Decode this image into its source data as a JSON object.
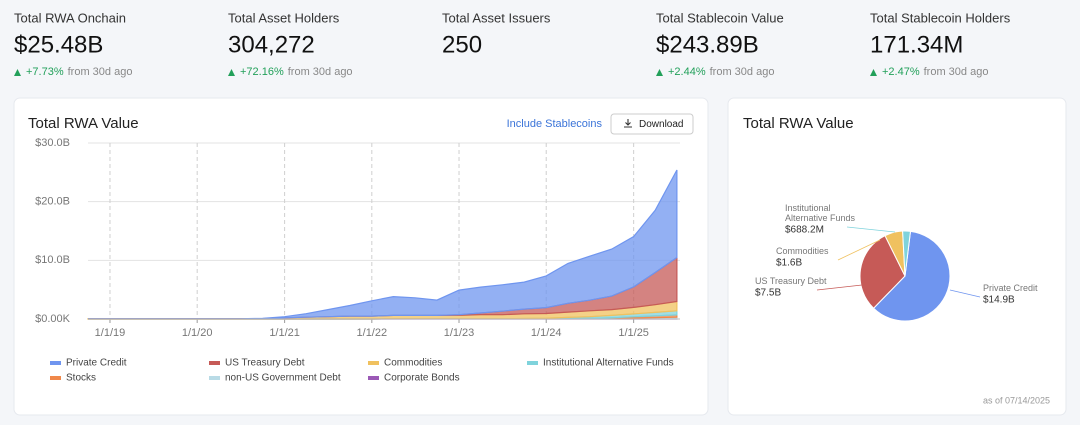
{
  "stats": [
    {
      "label": "Total RWA Onchain",
      "value": "$25.48B",
      "change": "+7.73%",
      "period": "from 30d ago"
    },
    {
      "label": "Total Asset Holders",
      "value": "304,272",
      "change": "+72.16%",
      "period": "from 30d ago"
    },
    {
      "label": "Total Asset Issuers",
      "value": "250"
    },
    {
      "label": "Total Stablecoin Value",
      "value": "$243.89B",
      "change": "+2.44%",
      "period": "from 30d ago"
    },
    {
      "label": "Total Stablecoin Holders",
      "value": "171.34M",
      "change": "+2.47%",
      "period": "from 30d ago"
    }
  ],
  "controls": {
    "toggle": "Include Stablecoins",
    "download": "Download"
  },
  "chart_data": [
    {
      "type": "stacked_area",
      "title": "Total RWA Value",
      "x": [
        "10/1/18",
        "1/1/19",
        "4/1/19",
        "7/1/19",
        "10/1/19",
        "1/1/20",
        "4/1/20",
        "7/1/20",
        "10/1/20",
        "1/1/21",
        "4/1/21",
        "7/1/21",
        "10/1/21",
        "1/1/22",
        "4/1/22",
        "7/1/22",
        "10/1/22",
        "1/1/23",
        "4/1/23",
        "7/1/23",
        "10/1/23",
        "1/1/24",
        "4/1/24",
        "7/1/24",
        "10/1/24",
        "1/1/25",
        "4/1/25",
        "7/1/25"
      ],
      "xlim": [
        "10/1/18",
        "7/14/25"
      ],
      "xticks": [
        "1/1/19",
        "1/1/20",
        "1/1/21",
        "1/1/22",
        "1/1/23",
        "1/1/24",
        "1/1/25"
      ],
      "ylim": [
        0,
        30
      ],
      "yticks": [
        {
          "value": 0,
          "label": "$0.00K"
        },
        {
          "value": 10,
          "label": "$10.0B"
        },
        {
          "value": 20,
          "label": "$20.0B"
        },
        {
          "value": 30,
          "label": "$30.0B"
        }
      ],
      "grid": true,
      "series": [
        {
          "name": "Private Credit",
          "color": "#6f95ef",
          "values": [
            0,
            0,
            0,
            0,
            0,
            0,
            0,
            0,
            0.05,
            0.2,
            0.6,
            1.2,
            1.8,
            2.6,
            3.2,
            3.0,
            2.6,
            4.2,
            4.4,
            4.5,
            4.6,
            5.4,
            6.8,
            7.5,
            8.0,
            8.6,
            10.6,
            14.9
          ]
        },
        {
          "name": "US Treasury Debt",
          "color": "#c65a57",
          "values": [
            0,
            0,
            0,
            0,
            0,
            0,
            0,
            0,
            0,
            0,
            0,
            0,
            0,
            0,
            0,
            0,
            0,
            0.1,
            0.3,
            0.6,
            0.8,
            1.0,
            1.5,
            1.8,
            2.3,
            3.5,
            5.5,
            7.5
          ]
        },
        {
          "name": "Commodities",
          "color": "#f0c15f",
          "values": [
            0.05,
            0.05,
            0.05,
            0.05,
            0.05,
            0.05,
            0.05,
            0.05,
            0.05,
            0.2,
            0.3,
            0.4,
            0.5,
            0.5,
            0.6,
            0.6,
            0.6,
            0.6,
            0.7,
            0.7,
            0.8,
            0.8,
            0.9,
            1.0,
            1.0,
            1.1,
            1.3,
            1.6
          ]
        },
        {
          "name": "Institutional Alternative Funds",
          "color": "#7fd3dc",
          "values": [
            0,
            0,
            0,
            0,
            0,
            0,
            0,
            0,
            0,
            0,
            0,
            0,
            0,
            0,
            0,
            0,
            0,
            0,
            0,
            0,
            0.05,
            0.1,
            0.2,
            0.3,
            0.4,
            0.5,
            0.6,
            0.69
          ]
        },
        {
          "name": "Stocks",
          "color": "#f0884a",
          "values": [
            0,
            0,
            0,
            0,
            0,
            0,
            0,
            0,
            0,
            0,
            0,
            0,
            0,
            0,
            0,
            0,
            0,
            0,
            0,
            0,
            0,
            0,
            0.02,
            0.05,
            0.1,
            0.2,
            0.3,
            0.4
          ]
        },
        {
          "name": "non-US Government Debt",
          "color": "#b9dbe6",
          "values": [
            0,
            0,
            0,
            0,
            0,
            0,
            0,
            0,
            0,
            0,
            0,
            0,
            0,
            0,
            0,
            0,
            0,
            0,
            0,
            0,
            0,
            0,
            0,
            0,
            0.05,
            0.1,
            0.15,
            0.2
          ]
        },
        {
          "name": "Corporate Bonds",
          "color": "#9b59b6",
          "values": [
            0,
            0,
            0,
            0,
            0,
            0,
            0,
            0,
            0,
            0,
            0,
            0,
            0,
            0,
            0.02,
            0.02,
            0.02,
            0.03,
            0.03,
            0.03,
            0.04,
            0.04,
            0.05,
            0.05,
            0.06,
            0.07,
            0.08,
            0.1
          ]
        }
      ]
    },
    {
      "type": "pie",
      "title": "Total RWA Value",
      "categories": [
        "Private Credit",
        "US Treasury Debt",
        "Commodities",
        "Institutional Alternative Funds"
      ],
      "values": [
        14.9,
        7.5,
        1.6,
        0.6882
      ],
      "value_labels": [
        "$14.9B",
        "$7.5B",
        "$1.6B",
        "$688.2M"
      ],
      "colors": [
        "#6f95ef",
        "#c65a57",
        "#f0c15f",
        "#7fd3dc"
      ],
      "note": "as of 07/14/2025"
    }
  ]
}
